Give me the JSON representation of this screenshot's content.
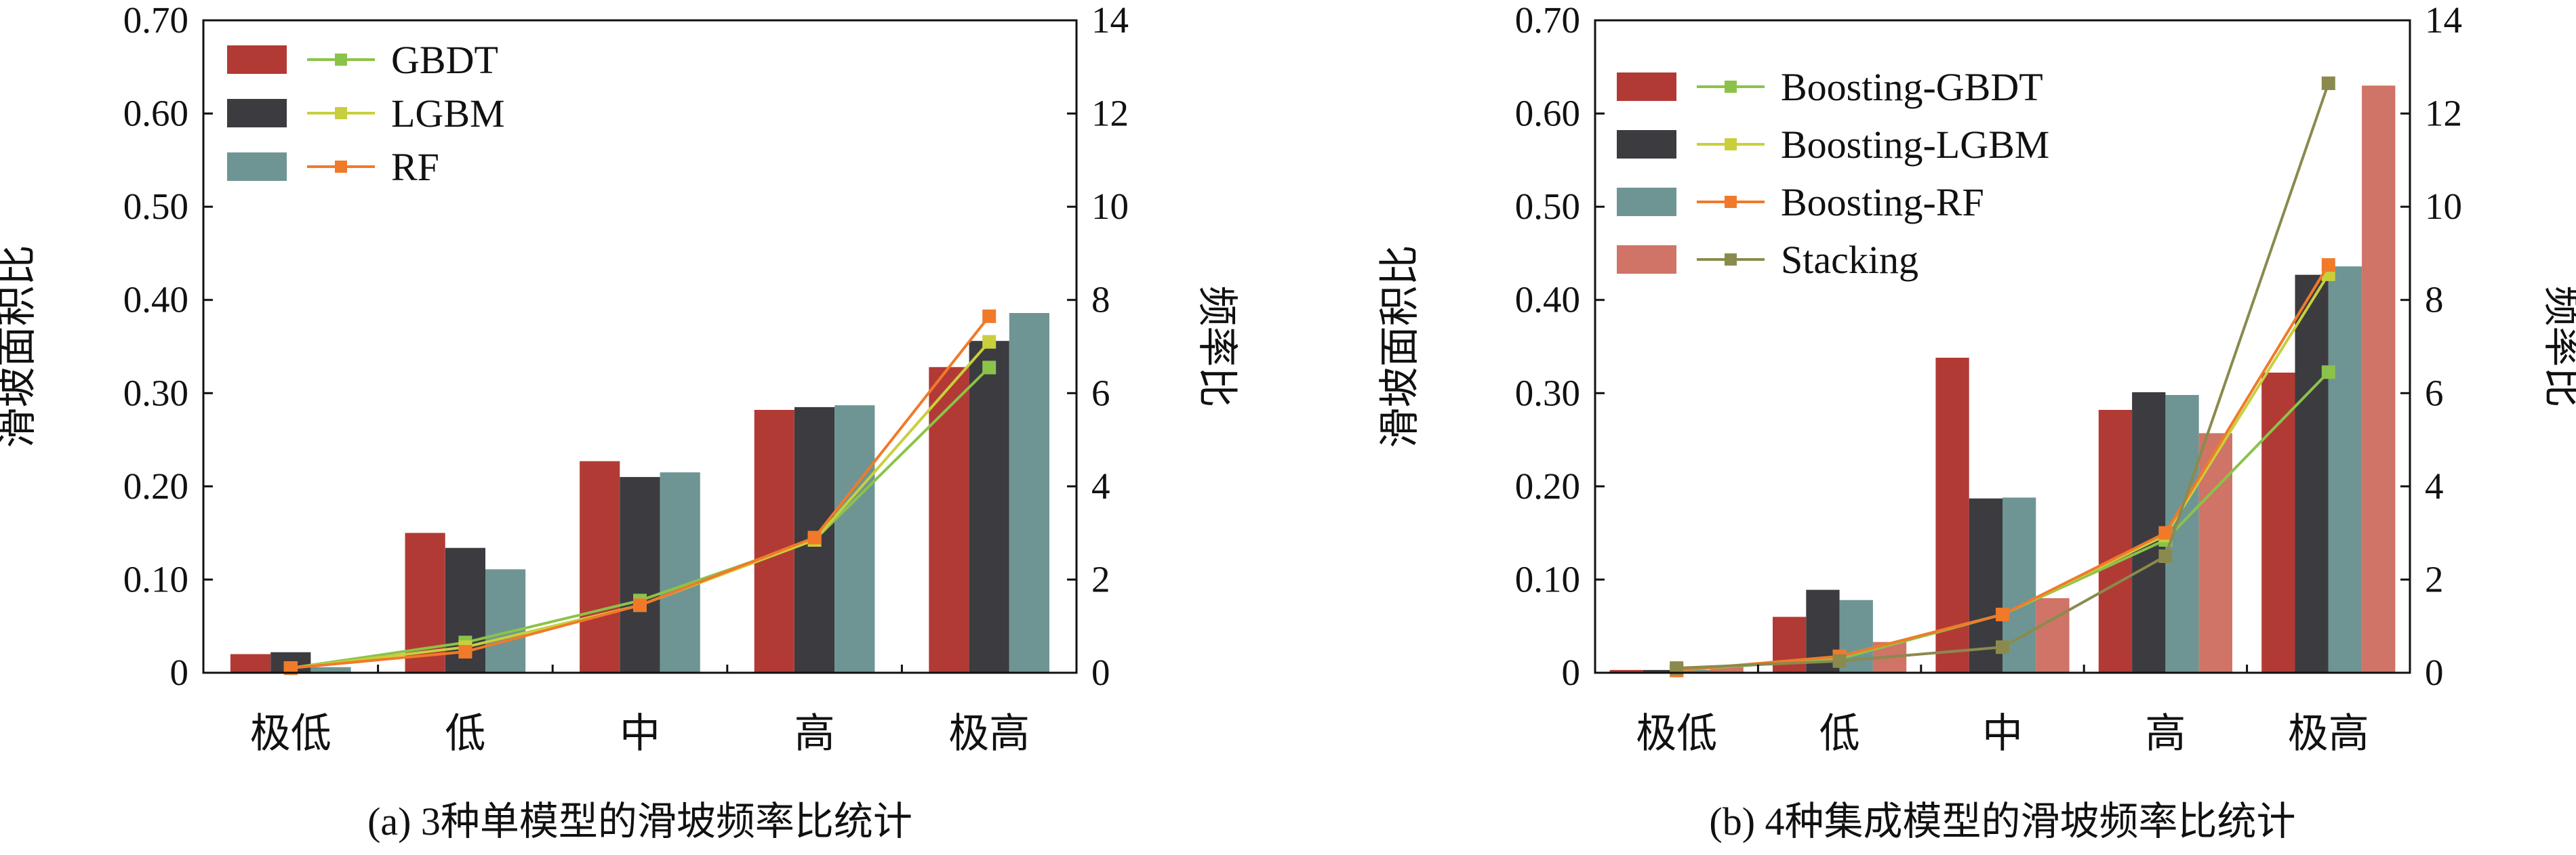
{
  "colors": {
    "GBDT": "#b23a35",
    "LGBM": "#3b3b40",
    "RF": "#6e9594",
    "Stacking": "#cf7466",
    "line_GBDT": "#8bc34a",
    "line_LGBM": "#c9cf3c",
    "line_RF": "#f07a2a",
    "line_Stacking": "#8a8a4e"
  },
  "chart_data": [
    {
      "type": "bar",
      "title": "(a) 3种单模型的滑坡频率比统计",
      "categories": [
        "极低",
        "低",
        "中",
        "高",
        "极高"
      ],
      "ylabel": "滑坡面积比",
      "y2label": "频率比",
      "ylim": [
        0,
        0.7
      ],
      "y2lim": [
        0,
        14
      ],
      "yticks": [
        "0",
        "0.10",
        "0.20",
        "0.30",
        "0.40",
        "0.50",
        "0.60",
        "0.70"
      ],
      "y2ticks": [
        "0",
        "2",
        "4",
        "6",
        "8",
        "10",
        "12",
        "14"
      ],
      "series": [
        {
          "name": "GBDT",
          "values": [
            0.02,
            0.15,
            0.227,
            0.282,
            0.328
          ]
        },
        {
          "name": "LGBM",
          "values": [
            0.022,
            0.134,
            0.21,
            0.285,
            0.356
          ]
        },
        {
          "name": "RF",
          "values": [
            0.006,
            0.111,
            0.215,
            0.287,
            0.386
          ]
        }
      ],
      "line_series": [
        {
          "name": "GBDT",
          "values": [
            0.1,
            0.65,
            1.55,
            2.85,
            6.55
          ]
        },
        {
          "name": "LGBM",
          "values": [
            0.1,
            0.55,
            1.45,
            2.85,
            7.1
          ]
        },
        {
          "name": "RF",
          "values": [
            0.1,
            0.45,
            1.45,
            2.9,
            7.65
          ]
        }
      ]
    },
    {
      "type": "bar",
      "title": "(b) 4种集成模型的滑坡频率比统计",
      "categories": [
        "极低",
        "低",
        "中",
        "高",
        "极高"
      ],
      "ylabel": "滑坡面积比",
      "y2label": "频率比",
      "ylim": [
        0,
        0.7
      ],
      "y2lim": [
        0,
        14
      ],
      "yticks": [
        "0",
        "0.10",
        "0.20",
        "0.30",
        "0.40",
        "0.50",
        "0.60",
        "0.70"
      ],
      "y2ticks": [
        "0",
        "2",
        "4",
        "6",
        "8",
        "10",
        "12",
        "14"
      ],
      "series": [
        {
          "name": "Boosting-GBDT",
          "values": [
            0.003,
            0.06,
            0.338,
            0.282,
            0.322
          ]
        },
        {
          "name": "Boosting-LGBM",
          "values": [
            0.003,
            0.089,
            0.187,
            0.301,
            0.427
          ]
        },
        {
          "name": "Boosting-RF",
          "values": [
            0.003,
            0.078,
            0.188,
            0.298,
            0.436
          ]
        },
        {
          "name": "Stacking",
          "values": [
            0.006,
            0.033,
            0.08,
            0.257,
            0.63
          ]
        }
      ],
      "line_series": [
        {
          "name": "Boosting-GBDT",
          "values": [
            0.05,
            0.3,
            1.25,
            2.85,
            6.45
          ]
        },
        {
          "name": "Boosting-LGBM",
          "values": [
            0.05,
            0.35,
            1.25,
            2.95,
            8.55
          ]
        },
        {
          "name": "Boosting-RF",
          "values": [
            0.05,
            0.35,
            1.25,
            3.0,
            8.75
          ]
        },
        {
          "name": "Stacking",
          "values": [
            0.1,
            0.25,
            0.55,
            2.5,
            12.65
          ]
        }
      ]
    }
  ]
}
